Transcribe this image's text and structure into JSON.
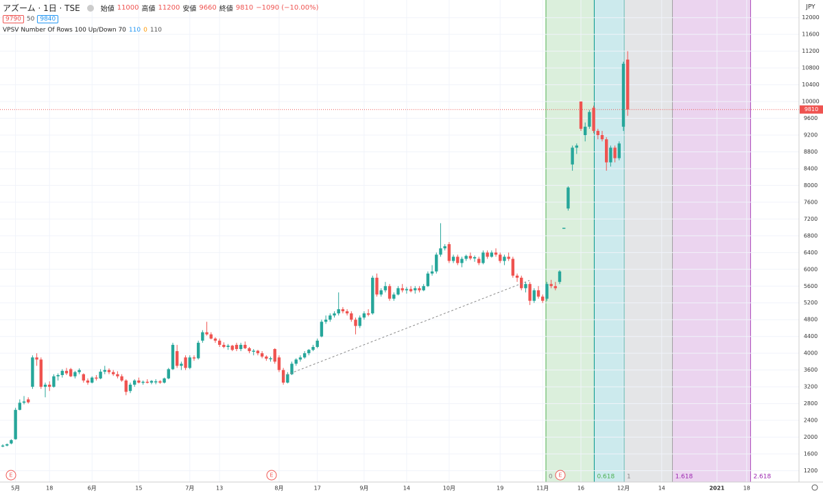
{
  "header": {
    "symbol": "アズーム · 1日 · TSE",
    "open_label": "始値",
    "high_label": "高値",
    "low_label": "安値",
    "close_label": "終値",
    "change": "−1090 (−10.00%)",
    "bid": "9790",
    "spread": "50",
    "ask": "9840",
    "indicator": "VPSV Number Of Rows 100 Up/Down 70",
    "ind_v1": "110",
    "ind_v2": "0",
    "ind_v3": "110",
    "currency": "JPY",
    "earnings": [
      "E",
      "E",
      "E"
    ]
  },
  "chart_data": {
    "type": "candlestick",
    "up_color": "#26a69a",
    "down_color": "#ef5350",
    "grid": true,
    "xlim": [
      -0.65,
      187.3
    ],
    "xticks": [
      {
        "value": 3,
        "label": "5月"
      },
      {
        "value": 11,
        "label": "18"
      },
      {
        "value": 21,
        "label": "6月"
      },
      {
        "value": 32,
        "label": "15"
      },
      {
        "value": 44,
        "label": "7月"
      },
      {
        "value": 51,
        "label": "13"
      },
      {
        "value": 65,
        "label": "8月"
      },
      {
        "value": 74,
        "label": "17"
      },
      {
        "value": 85,
        "label": "9月"
      },
      {
        "value": 95,
        "label": "14"
      },
      {
        "value": 105,
        "label": "10月"
      },
      {
        "value": 117,
        "label": "19"
      },
      {
        "value": 127,
        "label": "11月"
      },
      {
        "value": 136,
        "label": "16"
      },
      {
        "value": 146,
        "label": "12月"
      },
      {
        "value": 155,
        "label": "14"
      },
      {
        "value": 168,
        "label": "2021"
      },
      {
        "value": 175,
        "label": "18"
      }
    ],
    "ylim": [
      930,
      12420
    ],
    "yticks": [
      1200,
      1600,
      2000,
      2400,
      2800,
      3200,
      3600,
      4000,
      4400,
      4800,
      5200,
      5600,
      6000,
      6400,
      6800,
      7200,
      7600,
      8000,
      8400,
      8800,
      9200,
      9600,
      10000,
      10400,
      10800,
      11200,
      11600,
      12000
    ],
    "fib_time_zones": {
      "levels": [
        0,
        0.618,
        1,
        1.618,
        2.618
      ],
      "line_colors": [
        "#4caf50",
        "#009688",
        "#4db6ac",
        "#9e9e9e",
        "#ab47bc"
      ],
      "label_colors": [
        "#888888",
        "#4caf50",
        "#888888",
        "#9c27b0",
        "#9c27b0"
      ],
      "zone_colors": [
        "rgba(76,175,80,0.2)",
        "rgba(0,151,167,0.2)",
        "rgba(120,123,134,0.2)",
        "rgba(156,39,176,0.2)"
      ]
    },
    "candles": [
      {
        "o": 1780,
        "h": 1830,
        "l": 1760,
        "c": 1800
      },
      {
        "o": 1800,
        "h": 1850,
        "l": 1780,
        "c": 1830
      },
      {
        "o": 1850,
        "h": 1950,
        "l": 1830,
        "c": 1930
      },
      {
        "o": 1950,
        "h": 2700,
        "l": 1940,
        "c": 2650
      },
      {
        "o": 2650,
        "h": 2900,
        "l": 2640,
        "c": 2820
      },
      {
        "o": 2820,
        "h": 2980,
        "l": 2780,
        "c": 2850
      },
      {
        "o": 2900,
        "h": 2950,
        "l": 2800,
        "c": 2830
      },
      {
        "o": 3200,
        "h": 3950,
        "l": 3150,
        "c": 3900
      },
      {
        "o": 3900,
        "h": 4000,
        "l": 3700,
        "c": 3850
      },
      {
        "o": 3850,
        "h": 3900,
        "l": 3150,
        "c": 3200
      },
      {
        "o": 3200,
        "h": 3300,
        "l": 2950,
        "c": 3250
      },
      {
        "o": 3250,
        "h": 3330,
        "l": 3100,
        "c": 3200
      },
      {
        "o": 3200,
        "h": 3500,
        "l": 3180,
        "c": 3450
      },
      {
        "o": 3450,
        "h": 3520,
        "l": 3350,
        "c": 3480
      },
      {
        "o": 3480,
        "h": 3620,
        "l": 3420,
        "c": 3580
      },
      {
        "o": 3580,
        "h": 3650,
        "l": 3480,
        "c": 3520
      },
      {
        "o": 3620,
        "h": 3650,
        "l": 3430,
        "c": 3450
      },
      {
        "o": 3450,
        "h": 3580,
        "l": 3400,
        "c": 3550
      },
      {
        "o": 3550,
        "h": 3640,
        "l": 3500,
        "c": 3600
      },
      {
        "o": 3500,
        "h": 3520,
        "l": 3300,
        "c": 3350
      },
      {
        "o": 3350,
        "h": 3400,
        "l": 3250,
        "c": 3300
      },
      {
        "o": 3300,
        "h": 3450,
        "l": 3280,
        "c": 3420
      },
      {
        "o": 3420,
        "h": 3480,
        "l": 3350,
        "c": 3400
      },
      {
        "o": 3400,
        "h": 3620,
        "l": 3380,
        "c": 3560
      },
      {
        "o": 3560,
        "h": 3700,
        "l": 3500,
        "c": 3600
      },
      {
        "o": 3600,
        "h": 3640,
        "l": 3500,
        "c": 3550
      },
      {
        "o": 3550,
        "h": 3600,
        "l": 3460,
        "c": 3500
      },
      {
        "o": 3500,
        "h": 3570,
        "l": 3400,
        "c": 3450
      },
      {
        "o": 3450,
        "h": 3500,
        "l": 3320,
        "c": 3350
      },
      {
        "o": 3350,
        "h": 3380,
        "l": 3000,
        "c": 3080
      },
      {
        "o": 3100,
        "h": 3300,
        "l": 3050,
        "c": 3250
      },
      {
        "o": 3250,
        "h": 3380,
        "l": 3200,
        "c": 3350
      },
      {
        "o": 3350,
        "h": 3420,
        "l": 3280,
        "c": 3300
      },
      {
        "o": 3300,
        "h": 3350,
        "l": 3250,
        "c": 3320
      },
      {
        "o": 3320,
        "h": 3380,
        "l": 3280,
        "c": 3300
      },
      {
        "o": 3300,
        "h": 3360,
        "l": 3260,
        "c": 3340
      },
      {
        "o": 3330,
        "h": 3380,
        "l": 3260,
        "c": 3330
      },
      {
        "o": 3330,
        "h": 3360,
        "l": 3270,
        "c": 3300
      },
      {
        "o": 3300,
        "h": 3420,
        "l": 3280,
        "c": 3400
      },
      {
        "o": 3400,
        "h": 3650,
        "l": 3380,
        "c": 3620
      },
      {
        "o": 3620,
        "h": 4250,
        "l": 3600,
        "c": 4200
      },
      {
        "o": 4050,
        "h": 4200,
        "l": 3650,
        "c": 3700
      },
      {
        "o": 3700,
        "h": 3800,
        "l": 3600,
        "c": 3750
      },
      {
        "o": 3900,
        "h": 3950,
        "l": 3600,
        "c": 3650
      },
      {
        "o": 3650,
        "h": 3950,
        "l": 3620,
        "c": 3900
      },
      {
        "o": 3900,
        "h": 3950,
        "l": 3820,
        "c": 3880
      },
      {
        "o": 3880,
        "h": 4300,
        "l": 3850,
        "c": 4250
      },
      {
        "o": 4300,
        "h": 4550,
        "l": 4250,
        "c": 4500
      },
      {
        "o": 4500,
        "h": 4750,
        "l": 4420,
        "c": 4450
      },
      {
        "o": 4450,
        "h": 4500,
        "l": 4330,
        "c": 4350
      },
      {
        "o": 4350,
        "h": 4380,
        "l": 4250,
        "c": 4300
      },
      {
        "o": 4300,
        "h": 4350,
        "l": 4150,
        "c": 4200
      },
      {
        "o": 4200,
        "h": 4260,
        "l": 4120,
        "c": 4150
      },
      {
        "o": 4150,
        "h": 4220,
        "l": 4080,
        "c": 4180
      },
      {
        "o": 4180,
        "h": 4200,
        "l": 4050,
        "c": 4080
      },
      {
        "o": 4200,
        "h": 4250,
        "l": 4050,
        "c": 4100
      },
      {
        "o": 4100,
        "h": 4250,
        "l": 4050,
        "c": 4200
      },
      {
        "o": 4200,
        "h": 4280,
        "l": 4100,
        "c": 4120
      },
      {
        "o": 4120,
        "h": 4150,
        "l": 4000,
        "c": 4050
      },
      {
        "o": 4050,
        "h": 4100,
        "l": 3950,
        "c": 4060
      },
      {
        "o": 4060,
        "h": 4080,
        "l": 3950,
        "c": 4000
      },
      {
        "o": 4000,
        "h": 4050,
        "l": 3880,
        "c": 3920
      },
      {
        "o": 3920,
        "h": 3950,
        "l": 3820,
        "c": 3870
      },
      {
        "o": 3870,
        "h": 3920,
        "l": 3800,
        "c": 3880
      },
      {
        "o": 4100,
        "h": 4120,
        "l": 3750,
        "c": 3800
      },
      {
        "o": 3900,
        "h": 3950,
        "l": 3550,
        "c": 3600
      },
      {
        "o": 3600,
        "h": 3650,
        "l": 3250,
        "c": 3300
      },
      {
        "o": 3300,
        "h": 3550,
        "l": 3280,
        "c": 3500
      },
      {
        "o": 3500,
        "h": 3800,
        "l": 3480,
        "c": 3750
      },
      {
        "o": 3750,
        "h": 3880,
        "l": 3700,
        "c": 3850
      },
      {
        "o": 3850,
        "h": 3950,
        "l": 3800,
        "c": 3900
      },
      {
        "o": 3900,
        "h": 4050,
        "l": 3870,
        "c": 4000
      },
      {
        "o": 4000,
        "h": 4100,
        "l": 3950,
        "c": 4080
      },
      {
        "o": 4080,
        "h": 4200,
        "l": 4050,
        "c": 4150
      },
      {
        "o": 4150,
        "h": 4350,
        "l": 4120,
        "c": 4300
      },
      {
        "o": 4400,
        "h": 4800,
        "l": 4380,
        "c": 4750
      },
      {
        "o": 4750,
        "h": 4900,
        "l": 4700,
        "c": 4800
      },
      {
        "o": 4800,
        "h": 4950,
        "l": 4750,
        "c": 4900
      },
      {
        "o": 4900,
        "h": 5000,
        "l": 4850,
        "c": 4950
      },
      {
        "o": 4950,
        "h": 5450,
        "l": 4900,
        "c": 5050
      },
      {
        "o": 5050,
        "h": 5100,
        "l": 4950,
        "c": 5000
      },
      {
        "o": 5000,
        "h": 5050,
        "l": 4900,
        "c": 4950
      },
      {
        "o": 4950,
        "h": 5000,
        "l": 4750,
        "c": 4800
      },
      {
        "o": 4800,
        "h": 4850,
        "l": 4450,
        "c": 4650
      },
      {
        "o": 4650,
        "h": 4900,
        "l": 4600,
        "c": 4850
      },
      {
        "o": 4850,
        "h": 5000,
        "l": 4800,
        "c": 4950
      },
      {
        "o": 4950,
        "h": 5050,
        "l": 4880,
        "c": 4920
      },
      {
        "o": 4950,
        "h": 5850,
        "l": 4920,
        "c": 5800
      },
      {
        "o": 5800,
        "h": 5900,
        "l": 5350,
        "c": 5400
      },
      {
        "o": 5400,
        "h": 5550,
        "l": 5350,
        "c": 5500
      },
      {
        "o": 5500,
        "h": 5700,
        "l": 5450,
        "c": 5600
      },
      {
        "o": 5600,
        "h": 5650,
        "l": 5250,
        "c": 5300
      },
      {
        "o": 5300,
        "h": 5450,
        "l": 5250,
        "c": 5400
      },
      {
        "o": 5400,
        "h": 5600,
        "l": 5380,
        "c": 5550
      },
      {
        "o": 5550,
        "h": 5650,
        "l": 5450,
        "c": 5500
      },
      {
        "o": 5500,
        "h": 5580,
        "l": 5420,
        "c": 5530
      },
      {
        "o": 5530,
        "h": 5600,
        "l": 5450,
        "c": 5480
      },
      {
        "o": 5500,
        "h": 5600,
        "l": 5420,
        "c": 5550
      },
      {
        "o": 5550,
        "h": 5600,
        "l": 5450,
        "c": 5500
      },
      {
        "o": 5500,
        "h": 5650,
        "l": 5480,
        "c": 5600
      },
      {
        "o": 5600,
        "h": 5950,
        "l": 5580,
        "c": 5900
      },
      {
        "o": 5900,
        "h": 6100,
        "l": 5850,
        "c": 5950
      },
      {
        "o": 5950,
        "h": 6400,
        "l": 5900,
        "c": 6350
      },
      {
        "o": 6350,
        "h": 7100,
        "l": 6300,
        "c": 6500
      },
      {
        "o": 6500,
        "h": 6600,
        "l": 6450,
        "c": 6550
      },
      {
        "o": 6600,
        "h": 6650,
        "l": 6150,
        "c": 6200
      },
      {
        "o": 6200,
        "h": 6350,
        "l": 6150,
        "c": 6300
      },
      {
        "o": 6300,
        "h": 6350,
        "l": 6100,
        "c": 6150
      },
      {
        "o": 6150,
        "h": 6300,
        "l": 6050,
        "c": 6250
      },
      {
        "o": 6250,
        "h": 6350,
        "l": 6200,
        "c": 6320
      },
      {
        "o": 6320,
        "h": 6400,
        "l": 6220,
        "c": 6260
      },
      {
        "o": 6260,
        "h": 6330,
        "l": 6180,
        "c": 6290
      },
      {
        "o": 6250,
        "h": 6300,
        "l": 6100,
        "c": 6150
      },
      {
        "o": 6150,
        "h": 6450,
        "l": 6120,
        "c": 6400
      },
      {
        "o": 6400,
        "h": 6450,
        "l": 6250,
        "c": 6300
      },
      {
        "o": 6300,
        "h": 6450,
        "l": 6280,
        "c": 6400
      },
      {
        "o": 6400,
        "h": 6500,
        "l": 6300,
        "c": 6350
      },
      {
        "o": 6350,
        "h": 6400,
        "l": 6150,
        "c": 6200
      },
      {
        "o": 6200,
        "h": 6350,
        "l": 6100,
        "c": 6300
      },
      {
        "o": 6300,
        "h": 6400,
        "l": 6200,
        "c": 6250
      },
      {
        "o": 6250,
        "h": 6300,
        "l": 5800,
        "c": 5850
      },
      {
        "o": 5850,
        "h": 5900,
        "l": 5700,
        "c": 5800
      },
      {
        "o": 5800,
        "h": 5850,
        "l": 5500,
        "c": 5550
      },
      {
        "o": 5550,
        "h": 5700,
        "l": 5450,
        "c": 5650
      },
      {
        "o": 5650,
        "h": 5700,
        "l": 5150,
        "c": 5250
      },
      {
        "o": 5250,
        "h": 5550,
        "l": 5200,
        "c": 5500
      },
      {
        "o": 5500,
        "h": 5600,
        "l": 5300,
        "c": 5350
      },
      {
        "o": 5350,
        "h": 5400,
        "l": 5200,
        "c": 5250
      },
      {
        "o": 5300,
        "h": 5700,
        "l": 5250,
        "c": 5650
      },
      {
        "o": 5650,
        "h": 5750,
        "l": 5550,
        "c": 5600
      },
      {
        "o": 5600,
        "h": 5700,
        "l": 5500,
        "c": 5550
      },
      {
        "o": 5700,
        "h": 5980,
        "l": 5650,
        "c": 5950
      },
      {
        "o": 6990,
        "h": 6990,
        "l": 6990,
        "c": 6990
      },
      {
        "o": 7450,
        "h": 7980,
        "l": 7400,
        "c": 7950
      },
      {
        "o": 8500,
        "h": 8950,
        "l": 8350,
        "c": 8900
      },
      {
        "o": 8900,
        "h": 9000,
        "l": 8750,
        "c": 8950
      },
      {
        "o": 10000,
        "h": 10000,
        "l": 9300,
        "c": 9350
      },
      {
        "o": 9200,
        "h": 9500,
        "l": 9050,
        "c": 9400
      },
      {
        "o": 9400,
        "h": 9800,
        "l": 9350,
        "c": 9750
      },
      {
        "o": 9850,
        "h": 9900,
        "l": 9250,
        "c": 9300
      },
      {
        "o": 9300,
        "h": 9350,
        "l": 9100,
        "c": 9200
      },
      {
        "o": 9200,
        "h": 9300,
        "l": 9050,
        "c": 9100
      },
      {
        "o": 9100,
        "h": 9150,
        "l": 8350,
        "c": 8550
      },
      {
        "o": 8550,
        "h": 8950,
        "l": 8450,
        "c": 8900
      },
      {
        "o": 8900,
        "h": 8950,
        "l": 8550,
        "c": 8650
      },
      {
        "o": 8650,
        "h": 9050,
        "l": 8600,
        "c": 9000
      },
      {
        "o": 9400,
        "h": 10950,
        "l": 9300,
        "c": 10900
      },
      {
        "o": 11000,
        "h": 11200,
        "l": 9660,
        "c": 9810
      }
    ]
  }
}
